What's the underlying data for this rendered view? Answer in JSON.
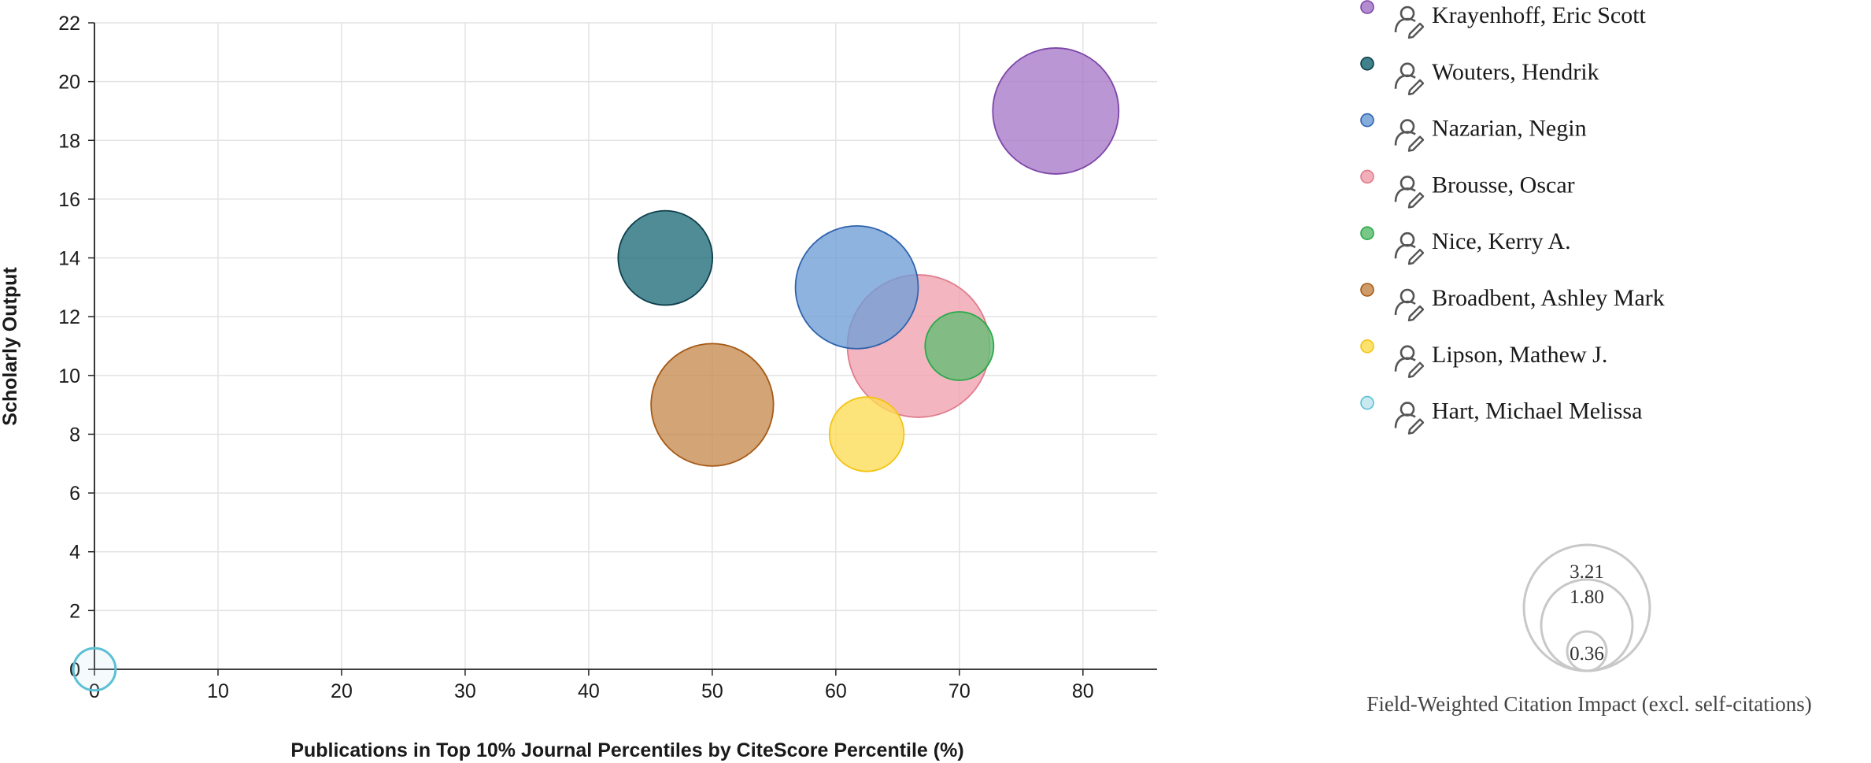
{
  "chart_data": {
    "type": "scatter",
    "subtype": "bubble",
    "xlabel": "Publications in Top 10% Journal Percentiles by CiteScore Percentile (%)",
    "ylabel": "Scholarly Output",
    "xlim": [
      0,
      86
    ],
    "ylim": [
      0,
      22
    ],
    "xticks": [
      0,
      10,
      20,
      30,
      40,
      50,
      60,
      70,
      80
    ],
    "yticks": [
      0,
      2,
      4,
      6,
      8,
      10,
      12,
      14,
      16,
      18,
      20,
      22
    ],
    "grid": true,
    "legend_position": "right",
    "series": [
      {
        "name": "Krayenhoff, Eric Scott",
        "x": 77.8,
        "y": 19,
        "fwci": 3.21,
        "color": "#a678c8",
        "stroke": "#7d45a8"
      },
      {
        "name": "Wouters, Hendrik",
        "x": 46.2,
        "y": 14,
        "fwci": 1.8,
        "color": "#1f6b78",
        "stroke": "#0d3f4c"
      },
      {
        "name": "Nazarian, Negin",
        "x": 61.7,
        "y": 13,
        "fwci": 3.05,
        "color": "#6f9ed6",
        "stroke": "#2f63ad"
      },
      {
        "name": "Brousse, Oscar",
        "x": 66.7,
        "y": 11,
        "fwci": 4.1,
        "color": "#f0a1ae",
        "stroke": "#e07c8c"
      },
      {
        "name": "Nice, Kerry A.",
        "x": 70.0,
        "y": 11,
        "fwci": 0.95,
        "color": "#62be73",
        "stroke": "#2aa84a"
      },
      {
        "name": "Broadbent, Ashley Mark",
        "x": 50.0,
        "y": 9,
        "fwci": 3.03,
        "color": "#c58a4f",
        "stroke": "#a65a16"
      },
      {
        "name": "Lipson, Mathew J.",
        "x": 62.5,
        "y": 8,
        "fwci": 1.12,
        "color": "#fddd55",
        "stroke": "#f4c313"
      },
      {
        "name": "Hart, Michael Melissa",
        "x": 0,
        "y": 0,
        "fwci": 0.36,
        "color": "#bfe5ef",
        "stroke": "#5cc0d4"
      }
    ],
    "size_legend": {
      "title": "Field-Weighted Citation Impact (excl. self-citations)",
      "values": [
        3.21,
        1.8,
        0.36
      ],
      "labels": [
        "3.21",
        "1.80",
        "0.36"
      ]
    }
  },
  "legend_icon": "researcher-icon"
}
